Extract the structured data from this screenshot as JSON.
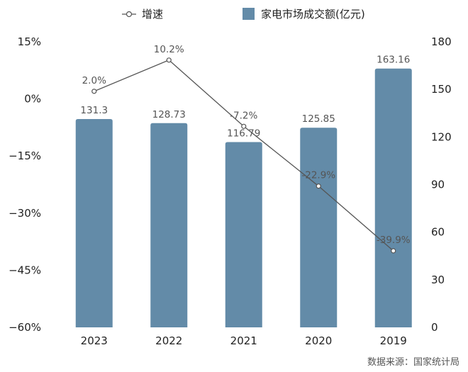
{
  "chart_data": {
    "type": "bar",
    "categories": [
      "2023",
      "2022",
      "2021",
      "2020",
      "2019"
    ],
    "series": [
      {
        "name": "家电市场成交额(亿元)",
        "kind": "bar",
        "axis": "right",
        "values": [
          131.3,
          128.73,
          116.79,
          125.85,
          163.16
        ],
        "labels": [
          "131.3",
          "128.73",
          "116.79",
          "125.85",
          "163.16"
        ]
      },
      {
        "name": "增速",
        "kind": "line",
        "axis": "left",
        "values": [
          2.0,
          10.2,
          -7.2,
          -22.9,
          -39.9
        ],
        "labels": [
          "2.0%",
          "10.2%",
          "-7.2%",
          "-22.9%",
          "-39.9%"
        ]
      }
    ],
    "y_left": {
      "ylim": [
        -60,
        15
      ],
      "ticks": [
        15,
        0,
        -15,
        -30,
        -45,
        -60
      ],
      "tick_labels": [
        "15%",
        "0%",
        "−15%",
        "−30%",
        "−45%",
        "−60%"
      ]
    },
    "y_right": {
      "ylim": [
        0,
        180
      ],
      "ticks": [
        180,
        150,
        120,
        90,
        60,
        30,
        0
      ],
      "tick_labels": [
        "180",
        "150",
        "120",
        "90",
        "60",
        "30",
        "0"
      ]
    },
    "title": "",
    "xlabel": "",
    "ylabel": "",
    "grid": false,
    "legend_position": "top-center",
    "colors": {
      "bar": "#638ba8",
      "line": "#555555",
      "marker_fill": "#ffffff"
    },
    "source": "数据来源：国家统计局"
  }
}
